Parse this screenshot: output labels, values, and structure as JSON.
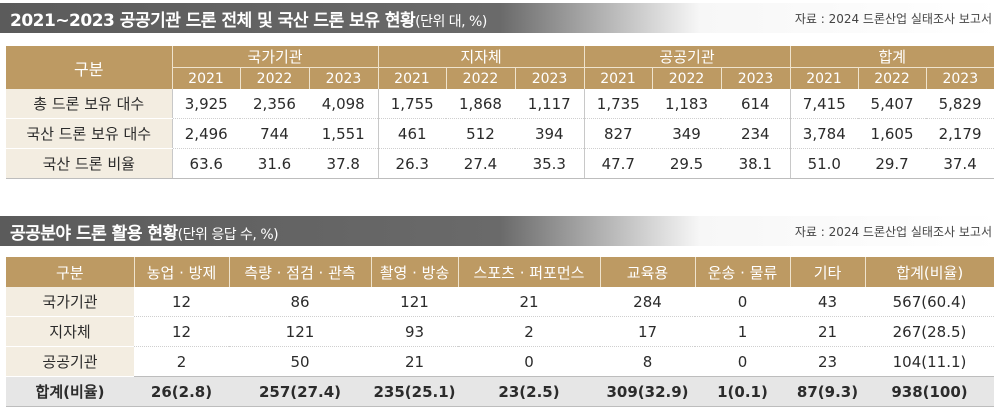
{
  "section1": {
    "title": "2021~2023 공공기관 드론 전체 및 국산 드론 보유 현황",
    "unit": "(단위 대, %)",
    "source": "자료 : 2024 드론산업 실태조사 보고서",
    "row_header": "구분",
    "groups": [
      "국가기관",
      "지자체",
      "공공기관",
      "합계"
    ],
    "years": [
      "2021",
      "2022",
      "2023"
    ],
    "rows": [
      {
        "label": "총 드론 보유 대수",
        "values": [
          "3,925",
          "2,356",
          "4,098",
          "1,755",
          "1,868",
          "1,117",
          "1,735",
          "1,183",
          "614",
          "7,415",
          "5,407",
          "5,829"
        ]
      },
      {
        "label": "국산 드론 보유 대수",
        "values": [
          "2,496",
          "744",
          "1,551",
          "461",
          "512",
          "394",
          "827",
          "349",
          "234",
          "3,784",
          "1,605",
          "2,179"
        ]
      },
      {
        "label": "국산 드론 비율",
        "values": [
          "63.6",
          "31.6",
          "37.8",
          "26.3",
          "27.4",
          "35.3",
          "47.7",
          "29.5",
          "38.1",
          "51.0",
          "29.7",
          "37.4"
        ]
      }
    ]
  },
  "section2": {
    "title": "공공분야 드론 활용 현황",
    "unit": "(단위 응답 수, %)",
    "source": "자료 : 2024 드론산업 실태조사 보고서",
    "headers": [
      "구분",
      "농업 · 방제",
      "측량 · 점검 · 관측",
      "촬영 · 방송",
      "스포츠 · 퍼포먼스",
      "교육용",
      "운송 · 물류",
      "기타",
      "합계(비율)"
    ],
    "rows": [
      {
        "label": "국가기관",
        "values": [
          "12",
          "86",
          "121",
          "21",
          "284",
          "0",
          "43",
          "567(60.4)"
        ]
      },
      {
        "label": "지자체",
        "values": [
          "12",
          "121",
          "93",
          "2",
          "17",
          "1",
          "21",
          "267(28.5)"
        ]
      },
      {
        "label": "공공기관",
        "values": [
          "2",
          "50",
          "21",
          "0",
          "8",
          "0",
          "23",
          "104(11.1)"
        ]
      }
    ],
    "total": {
      "label": "합계(비율)",
      "values": [
        "26(2.8)",
        "257(27.4)",
        "235(25.1)",
        "23(2.5)",
        "309(32.9)",
        "1(0.1)",
        "87(9.3)",
        "938(100)"
      ]
    }
  }
}
